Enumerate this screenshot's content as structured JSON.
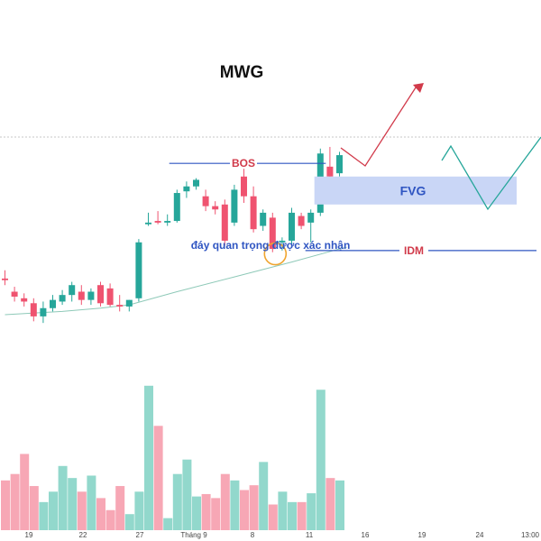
{
  "chart_data": {
    "type": "candlestick",
    "title": "MWG",
    "x_tick_labels": [
      "19",
      "22",
      "27",
      "Tháng 9",
      "8",
      "11",
      "16",
      "19",
      "24",
      "13:00"
    ],
    "colors": {
      "up": "#26a69a",
      "down": "#ef5370",
      "vol_up": "#92d8cc",
      "vol_down": "#f7a7b5",
      "ma": "#8ec9b8",
      "fvg": "#c6d3f5",
      "bos_line": "#2f55c2",
      "projection_up": "#d13a4a",
      "projection_alt": "#26a69a"
    },
    "candles": [
      {
        "o": 1.1,
        "h": 1.35,
        "l": 0.9,
        "c": 1.05
      },
      {
        "o": 0.7,
        "h": 0.85,
        "l": 0.4,
        "c": 0.55
      },
      {
        "o": 0.5,
        "h": 0.65,
        "l": 0.25,
        "c": 0.4
      },
      {
        "o": 0.35,
        "h": 0.5,
        "l": -0.2,
        "c": -0.05
      },
      {
        "o": -0.05,
        "h": 0.4,
        "l": -0.25,
        "c": 0.2
      },
      {
        "o": 0.2,
        "h": 0.6,
        "l": 0.1,
        "c": 0.45
      },
      {
        "o": 0.4,
        "h": 0.75,
        "l": 0.3,
        "c": 0.6
      },
      {
        "o": 0.6,
        "h": 1.0,
        "l": 0.4,
        "c": 0.9
      },
      {
        "o": 0.7,
        "h": 0.9,
        "l": 0.3,
        "c": 0.45
      },
      {
        "o": 0.45,
        "h": 0.8,
        "l": 0.3,
        "c": 0.7
      },
      {
        "o": 0.9,
        "h": 1.0,
        "l": 0.25,
        "c": 0.35
      },
      {
        "o": 0.8,
        "h": 0.95,
        "l": 0.25,
        "c": 0.3
      },
      {
        "o": 0.3,
        "h": 0.6,
        "l": 0.1,
        "c": 0.25
      },
      {
        "o": 0.25,
        "h": 0.45,
        "l": 0.1,
        "c": 0.45
      },
      {
        "o": 0.5,
        "h": 2.3,
        "l": 0.4,
        "c": 2.2
      },
      {
        "o": 2.75,
        "h": 3.1,
        "l": 2.7,
        "c": 2.8
      },
      {
        "o": 2.85,
        "h": 3.15,
        "l": 2.75,
        "c": 2.8
      },
      {
        "o": 2.8,
        "h": 3.05,
        "l": 2.7,
        "c": 2.85
      },
      {
        "o": 2.85,
        "h": 3.8,
        "l": 2.8,
        "c": 3.7
      },
      {
        "o": 3.75,
        "h": 4.05,
        "l": 3.55,
        "c": 3.9
      },
      {
        "o": 3.9,
        "h": 4.15,
        "l": 3.8,
        "c": 4.1
      },
      {
        "o": 3.6,
        "h": 3.8,
        "l": 3.15,
        "c": 3.3
      },
      {
        "o": 3.3,
        "h": 3.45,
        "l": 3.05,
        "c": 3.2
      },
      {
        "o": 3.35,
        "h": 3.5,
        "l": 2.1,
        "c": 2.25
      },
      {
        "o": 2.8,
        "h": 3.95,
        "l": 2.7,
        "c": 3.8
      },
      {
        "o": 4.2,
        "h": 4.45,
        "l": 3.4,
        "c": 3.6
      },
      {
        "o": 3.6,
        "h": 3.9,
        "l": 2.5,
        "c": 2.6
      },
      {
        "o": 2.7,
        "h": 3.2,
        "l": 2.55,
        "c": 3.1
      },
      {
        "o": 2.95,
        "h": 3.1,
        "l": 1.9,
        "c": 2.0
      },
      {
        "o": 2.2,
        "h": 2.35,
        "l": 1.95,
        "c": 2.25
      },
      {
        "o": 2.25,
        "h": 3.25,
        "l": 2.15,
        "c": 3.1
      },
      {
        "o": 3.0,
        "h": 3.1,
        "l": 2.6,
        "c": 2.7
      },
      {
        "o": 2.8,
        "h": 3.2,
        "l": 2.2,
        "c": 3.1
      },
      {
        "o": 3.1,
        "h": 5.05,
        "l": 3.0,
        "c": 4.9
      },
      {
        "o": 4.5,
        "h": 5.1,
        "l": 4.1,
        "c": 4.2
      },
      {
        "o": 4.3,
        "h": 4.95,
        "l": 4.2,
        "c": 4.85
      }
    ],
    "volumes": [
      62,
      70,
      95,
      55,
      35,
      48,
      80,
      65,
      48,
      68,
      40,
      25,
      55,
      20,
      48,
      180,
      130,
      15,
      70,
      88,
      42,
      45,
      40,
      70,
      62,
      50,
      56,
      85,
      32,
      48,
      35,
      35,
      46,
      175,
      65,
      62
    ],
    "moving_average": [
      {
        "i": 0,
        "v": 0.0
      },
      {
        "i": 6,
        "v": 0.1
      },
      {
        "i": 10,
        "v": 0.2
      },
      {
        "i": 13,
        "v": 0.3
      },
      {
        "i": 18,
        "v": 0.7
      },
      {
        "i": 24,
        "v": 1.15
      },
      {
        "i": 30,
        "v": 1.6
      },
      {
        "i": 35,
        "v": 2.0
      }
    ],
    "annotations": {
      "bos": {
        "label": "BOS",
        "level": 4.6
      },
      "fvg": {
        "label": "FVG",
        "low": 3.35,
        "high": 4.2
      },
      "idm": {
        "label": "IDM",
        "level": 1.95
      },
      "low_point": {
        "label": "đáy quan trọng được xác nhận",
        "level": 1.85
      }
    },
    "y_range": [
      -0.3,
      5.4
    ],
    "volume_max": 200
  }
}
